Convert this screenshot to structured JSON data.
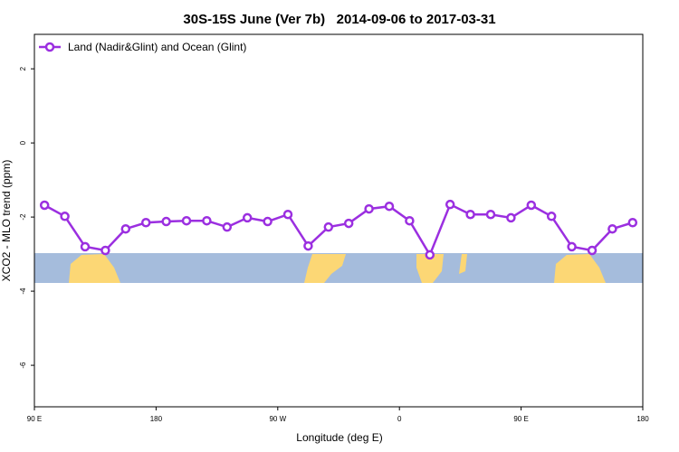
{
  "chart_data": {
    "type": "line",
    "title": "30S-15S June (Ver 7b)   2014-09-06 to 2017-03-31",
    "x_label": "Longitude (deg E)",
    "y_label": "XCO2 - MLO trend (ppm)",
    "x": [
      97.5,
      112.5,
      127.5,
      142.5,
      157.5,
      172.5,
      187.5,
      202.5,
      217.5,
      232.5,
      247.5,
      262.5,
      277.5,
      292.5,
      307.5,
      322.5,
      337.5,
      352.5,
      367.5,
      382.5,
      397.5,
      412.5,
      427.5,
      442.5,
      457.5,
      472.5,
      487.5,
      502.5,
      517.5,
      532.5
    ],
    "series": [
      {
        "name": "Land (Nadir&Glint) and Ocean (Glint)",
        "color": "#9b2fe0",
        "values": [
          -1.68,
          -1.98,
          -2.8,
          -2.9,
          -2.32,
          -2.15,
          -2.12,
          -2.1,
          -2.1,
          -2.27,
          -2.02,
          -2.12,
          -1.93,
          -2.78,
          -2.27,
          -2.17,
          -1.78,
          -1.71,
          -2.1,
          -3.02,
          -1.66,
          -1.93,
          -1.93,
          -2.02,
          -1.68,
          -1.98,
          -2.8,
          -2.9,
          -2.32,
          -2.15
        ]
      }
    ],
    "xlim": [
      90,
      540
    ],
    "xticks": [
      {
        "value": 90,
        "label": "90 E"
      },
      {
        "value": 180,
        "label": "180"
      },
      {
        "value": 270,
        "label": "90 W"
      },
      {
        "value": 360,
        "label": "0"
      },
      {
        "value": 450,
        "label": "90 E"
      },
      {
        "value": 540,
        "label": "180"
      }
    ],
    "ylim": [
      -7.12,
      2.93
    ],
    "yticks": [
      2,
      0,
      -2,
      -4,
      -6
    ],
    "legend": "top-left"
  }
}
